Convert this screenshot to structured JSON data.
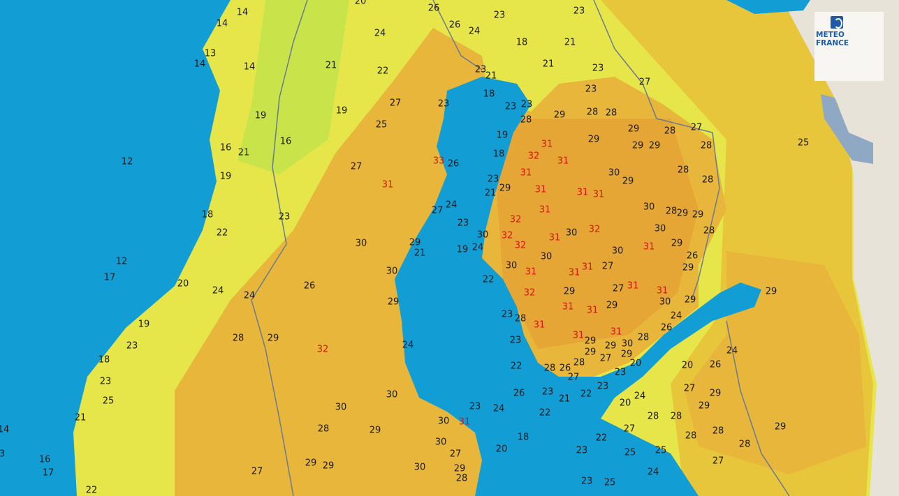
{
  "logo": {
    "line1": "METEO",
    "line2": "FRANCE"
  },
  "colors": {
    "sea": "#129dd4",
    "yellow": "#e6e64a",
    "green": "#c8e44a",
    "orange": "#e8b63a",
    "deep_orange": "#e6a636",
    "east": "#e8c63c",
    "beige": "#e8e3d8",
    "hot_text": "#d81414"
  },
  "labels": [
    {
      "v": "14"
    },
    {
      "v": "14"
    },
    {
      "v": "13"
    },
    {
      "v": "14"
    },
    {
      "v": "14"
    },
    {
      "v": "20"
    },
    {
      "v": "26"
    },
    {
      "v": "26"
    },
    {
      "v": "24"
    },
    {
      "v": "23"
    },
    {
      "v": "23"
    },
    {
      "v": "18"
    },
    {
      "v": "21"
    },
    {
      "v": "21"
    },
    {
      "v": "23"
    },
    {
      "v": "24"
    },
    {
      "v": "22"
    },
    {
      "v": "21"
    },
    {
      "v": "23"
    },
    {
      "v": "21"
    },
    {
      "v": "18"
    },
    {
      "v": "23"
    },
    {
      "v": "23"
    },
    {
      "v": "23"
    },
    {
      "v": "27"
    },
    {
      "v": "23"
    },
    {
      "v": "27"
    },
    {
      "v": "19"
    },
    {
      "v": "19"
    },
    {
      "v": "25"
    },
    {
      "v": "28"
    },
    {
      "v": "29"
    },
    {
      "v": "28"
    },
    {
      "v": "28"
    },
    {
      "v": "29"
    },
    {
      "v": "28"
    },
    {
      "v": "27"
    },
    {
      "v": "19"
    },
    {
      "v": "29"
    },
    {
      "v": "29"
    },
    {
      "v": "29"
    },
    {
      "v": "28"
    },
    {
      "v": "25"
    },
    {
      "v": "16"
    },
    {
      "v": "16"
    },
    {
      "v": "21"
    },
    {
      "v": "12"
    },
    {
      "v": "18"
    },
    {
      "v": "32",
      "hot": true
    },
    {
      "v": "31",
      "hot": true
    },
    {
      "v": "31",
      "hot": true
    },
    {
      "v": "33",
      "hot": true
    },
    {
      "v": "26"
    },
    {
      "v": "27"
    },
    {
      "v": "31",
      "hot": true
    },
    {
      "v": "31",
      "hot": true
    },
    {
      "v": "30"
    },
    {
      "v": "28"
    },
    {
      "v": "23"
    },
    {
      "v": "29"
    },
    {
      "v": "28"
    },
    {
      "v": "19"
    },
    {
      "v": "21"
    },
    {
      "v": "29"
    },
    {
      "v": "31",
      "hot": true
    },
    {
      "v": "31",
      "hot": true
    },
    {
      "v": "31",
      "hot": true
    },
    {
      "v": "27"
    },
    {
      "v": "24"
    },
    {
      "v": "30"
    },
    {
      "v": "28"
    },
    {
      "v": "29"
    },
    {
      "v": "29"
    },
    {
      "v": "18"
    },
    {
      "v": "23"
    },
    {
      "v": "22"
    },
    {
      "v": "23"
    },
    {
      "v": "32",
      "hot": true
    },
    {
      "v": "31",
      "hot": true
    },
    {
      "v": "30"
    },
    {
      "v": "32",
      "hot": true
    },
    {
      "v": "30"
    },
    {
      "v": "28"
    },
    {
      "v": "30"
    },
    {
      "v": "32",
      "hot": true
    },
    {
      "v": "32",
      "hot": true
    },
    {
      "v": "31",
      "hot": true
    },
    {
      "v": "29"
    },
    {
      "v": "30"
    },
    {
      "v": "29"
    },
    {
      "v": "21"
    },
    {
      "v": "19"
    },
    {
      "v": "24"
    },
    {
      "v": "30"
    },
    {
      "v": "31",
      "hot": true
    },
    {
      "v": "26"
    },
    {
      "v": "12"
    },
    {
      "v": "30"
    },
    {
      "v": "30"
    },
    {
      "v": "31",
      "hot": true
    },
    {
      "v": "31",
      "hot": true
    },
    {
      "v": "31",
      "hot": true
    },
    {
      "v": "27"
    },
    {
      "v": "29"
    },
    {
      "v": "17"
    },
    {
      "v": "30"
    },
    {
      "v": "20"
    },
    {
      "v": "24"
    },
    {
      "v": "26"
    },
    {
      "v": "22"
    },
    {
      "v": "27"
    },
    {
      "v": "31",
      "hot": true
    },
    {
      "v": "31",
      "hot": true
    },
    {
      "v": "24"
    },
    {
      "v": "29"
    },
    {
      "v": "32",
      "hot": true
    },
    {
      "v": "29"
    },
    {
      "v": "31",
      "hot": true
    },
    {
      "v": "31",
      "hot": true
    },
    {
      "v": "29"
    },
    {
      "v": "30"
    },
    {
      "v": "29"
    },
    {
      "v": "24"
    },
    {
      "v": "29"
    },
    {
      "v": "19"
    },
    {
      "v": "23"
    },
    {
      "v": "28"
    },
    {
      "v": "31",
      "hot": true
    },
    {
      "v": "26"
    },
    {
      "v": "28"
    },
    {
      "v": "29"
    },
    {
      "v": "32",
      "hot": true
    },
    {
      "v": "24"
    },
    {
      "v": "23"
    },
    {
      "v": "31",
      "hot": true
    },
    {
      "v": "31",
      "hot": true
    },
    {
      "v": "29"
    },
    {
      "v": "29"
    },
    {
      "v": "30"
    },
    {
      "v": "28"
    },
    {
      "v": "23"
    },
    {
      "v": "29"
    },
    {
      "v": "29"
    },
    {
      "v": "27"
    },
    {
      "v": "18"
    },
    {
      "v": "22"
    },
    {
      "v": "28"
    },
    {
      "v": "26"
    },
    {
      "v": "28"
    },
    {
      "v": "20"
    },
    {
      "v": "20"
    },
    {
      "v": "26"
    },
    {
      "v": "24"
    },
    {
      "v": "23"
    },
    {
      "v": "27"
    },
    {
      "v": "23"
    },
    {
      "v": "22"
    },
    {
      "v": "23"
    },
    {
      "v": "25"
    },
    {
      "v": "30"
    },
    {
      "v": "26"
    },
    {
      "v": "23"
    },
    {
      "v": "21"
    },
    {
      "v": "27"
    },
    {
      "v": "29"
    },
    {
      "v": "20"
    },
    {
      "v": "24"
    },
    {
      "v": "29"
    },
    {
      "v": "30"
    },
    {
      "v": "23"
    },
    {
      "v": "24"
    },
    {
      "v": "22"
    },
    {
      "v": "28"
    },
    {
      "v": "28"
    },
    {
      "v": "29"
    },
    {
      "v": "14"
    },
    {
      "v": "21"
    },
    {
      "v": "30"
    },
    {
      "v": "31",
      "hot": true
    },
    {
      "v": "28"
    },
    {
      "v": "29"
    },
    {
      "v": "27"
    },
    {
      "v": "28"
    },
    {
      "v": "18"
    },
    {
      "v": "22"
    },
    {
      "v": "28"
    },
    {
      "v": "28"
    },
    {
      "v": "30"
    },
    {
      "v": "20"
    },
    {
      "v": "23"
    },
    {
      "v": "25"
    },
    {
      "v": "25"
    },
    {
      "v": "3"
    },
    {
      "v": "16"
    },
    {
      "v": "17"
    },
    {
      "v": "27"
    },
    {
      "v": "29"
    },
    {
      "v": "29"
    },
    {
      "v": "30"
    },
    {
      "v": "29"
    },
    {
      "v": "28"
    },
    {
      "v": "27"
    },
    {
      "v": "27"
    },
    {
      "v": "24"
    },
    {
      "v": "23"
    },
    {
      "v": "25"
    },
    {
      "v": "22"
    }
  ]
}
